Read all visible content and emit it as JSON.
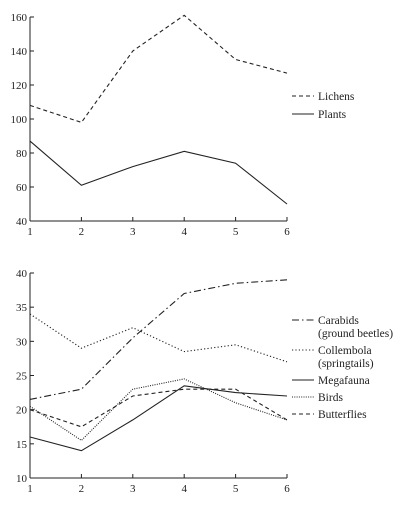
{
  "chart_data": [
    {
      "type": "line",
      "title": "",
      "xlabel": "",
      "ylabel": "",
      "x": [
        1,
        2,
        3,
        4,
        5,
        6
      ],
      "xlim": [
        1,
        6
      ],
      "ylim": [
        40,
        160
      ],
      "yticks": [
        40,
        60,
        80,
        100,
        120,
        140,
        160
      ],
      "grid": false,
      "legend": "right",
      "series": [
        {
          "name": "Lichens",
          "values": [
            108,
            98,
            140,
            161,
            135,
            127
          ],
          "dash": "dashed"
        },
        {
          "name": "Plants",
          "values": [
            87,
            61,
            72,
            81,
            74,
            50
          ],
          "dash": "solid"
        }
      ]
    },
    {
      "type": "line",
      "title": "",
      "xlabel": "",
      "ylabel": "",
      "x": [
        1,
        2,
        3,
        4,
        5,
        6
      ],
      "xlim": [
        1,
        6
      ],
      "ylim": [
        10,
        40
      ],
      "yticks": [
        10,
        15,
        20,
        25,
        30,
        35,
        40
      ],
      "grid": false,
      "legend": "right",
      "series": [
        {
          "name": "Carabids",
          "name_line2": "(ground beetles)",
          "values": [
            21.5,
            23,
            30.5,
            37,
            38.5,
            39
          ],
          "dash": "dashdot"
        },
        {
          "name": "Collembola",
          "name_line2": "(springtails)",
          "values": [
            34,
            29,
            32,
            28.5,
            29.5,
            27
          ],
          "dash": "dotted"
        },
        {
          "name": "Megafauna",
          "values": [
            16,
            14,
            18.5,
            23.5,
            22.5,
            22
          ],
          "dash": "solid"
        },
        {
          "name": "Birds",
          "values": [
            20.5,
            15.5,
            23,
            24.5,
            21,
            18.5
          ],
          "dash": "densedot"
        },
        {
          "name": "Butterflies",
          "values": [
            20,
            17.5,
            22,
            23,
            23,
            18.5
          ],
          "dash": "dashed"
        }
      ]
    }
  ]
}
